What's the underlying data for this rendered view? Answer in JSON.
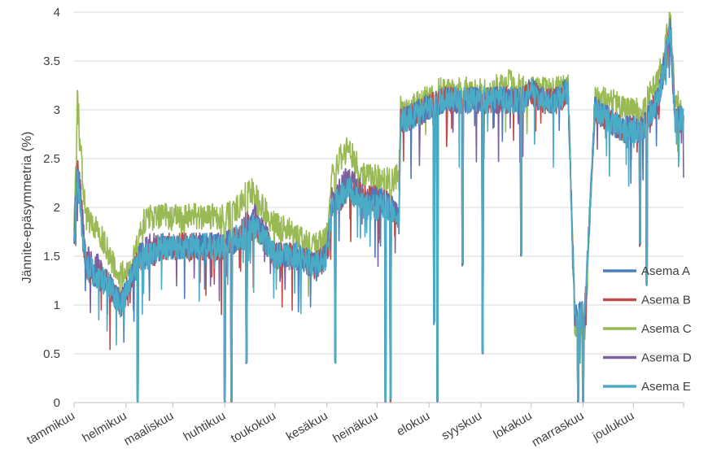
{
  "chart_data": {
    "type": "line",
    "title": "",
    "xlabel": "",
    "ylabel": "Jännite-epäsymmetria (%)",
    "ylim": [
      0,
      4
    ],
    "yticks": [
      "0",
      "0.5",
      "1",
      "1.5",
      "2",
      "2.5",
      "3",
      "3.5",
      "4"
    ],
    "grid": true,
    "legend_position": "bottom-right",
    "x_unit": "day of year",
    "xlim": [
      1,
      365
    ],
    "month_labels": [
      "tammikuu",
      "helmikuu",
      "maaliskuu",
      "huhtikuu",
      "toukokuu",
      "kesäkuu",
      "heinäkuu",
      "elokuu",
      "syyskuu",
      "lokakuu",
      "marraskuu",
      "joulukuu"
    ],
    "month_start_days": [
      1,
      32,
      60,
      91,
      121,
      152,
      182,
      213,
      244,
      274,
      305,
      335
    ],
    "dips": [
      {
        "x": 39,
        "y": 0
      },
      {
        "x": 91,
        "y": 0
      },
      {
        "x": 95,
        "y": 0
      },
      {
        "x": 104,
        "y": 0.4
      },
      {
        "x": 157,
        "y": 0.4
      },
      {
        "x": 187,
        "y": 0
      },
      {
        "x": 190,
        "y": 0
      },
      {
        "x": 216,
        "y": 0.8
      },
      {
        "x": 218,
        "y": 0
      },
      {
        "x": 233,
        "y": 1.4
      },
      {
        "x": 245,
        "y": 0.5
      },
      {
        "x": 268,
        "y": 1.5
      },
      {
        "x": 302,
        "y": 0
      },
      {
        "x": 305,
        "y": 0
      },
      {
        "x": 339,
        "y": 1.6
      },
      {
        "x": 343,
        "y": 1.2
      }
    ],
    "series": [
      {
        "name": "Asema A",
        "color": "#4a7ebb",
        "x": [
          1,
          3,
          8,
          15,
          22,
          29,
          36,
          40,
          46,
          53,
          60,
          70,
          80,
          90,
          100,
          105,
          110,
          121,
          125,
          135,
          145,
          152,
          155,
          165,
          175,
          182,
          190,
          195,
          196,
          200,
          210,
          220,
          230,
          240,
          250,
          260,
          270,
          274,
          280,
          290,
          296,
          300,
          306,
          312,
          320,
          330,
          340,
          350,
          357,
          360,
          365
        ],
        "values": [
          1.6,
          2.4,
          1.4,
          1.3,
          1.2,
          1.0,
          1.3,
          1.5,
          1.5,
          1.6,
          1.6,
          1.6,
          1.6,
          1.6,
          1.7,
          1.8,
          1.8,
          1.5,
          1.5,
          1.5,
          1.4,
          1.5,
          2.0,
          2.2,
          2.0,
          2.1,
          2.0,
          1.9,
          2.9,
          2.9,
          3.0,
          3.1,
          3.1,
          3.1,
          3.1,
          3.1,
          3.1,
          3.2,
          3.1,
          3.1,
          3.2,
          0.9,
          0.9,
          3.0,
          2.9,
          2.8,
          2.8,
          3.1,
          3.8,
          2.9,
          2.9
        ]
      },
      {
        "name": "Asema B",
        "color": "#be4b48",
        "x": [
          1,
          3,
          8,
          15,
          22,
          29,
          36,
          40,
          46,
          53,
          60,
          70,
          80,
          90,
          100,
          105,
          110,
          121,
          125,
          135,
          145,
          152,
          155,
          165,
          175,
          182,
          190,
          195,
          196,
          200,
          210,
          220,
          230,
          240,
          250,
          260,
          270,
          274,
          280,
          290,
          296,
          300,
          306,
          312,
          320,
          330,
          340,
          350,
          357,
          360,
          365
        ],
        "values": [
          1.6,
          2.4,
          1.4,
          1.3,
          1.2,
          1.0,
          1.3,
          1.5,
          1.5,
          1.6,
          1.6,
          1.6,
          1.6,
          1.6,
          1.7,
          1.8,
          1.8,
          1.5,
          1.5,
          1.5,
          1.4,
          1.5,
          2.0,
          2.2,
          2.1,
          2.1,
          2.0,
          1.9,
          2.9,
          2.9,
          3.0,
          3.1,
          3.1,
          3.1,
          3.1,
          3.1,
          3.1,
          3.2,
          3.1,
          3.1,
          3.2,
          0.9,
          0.9,
          3.0,
          2.9,
          2.8,
          2.8,
          3.1,
          3.8,
          2.9,
          2.9
        ]
      },
      {
        "name": "Asema C",
        "color": "#98b954",
        "x": [
          1,
          3,
          8,
          15,
          22,
          29,
          36,
          40,
          46,
          53,
          60,
          70,
          80,
          90,
          100,
          105,
          110,
          121,
          125,
          135,
          145,
          152,
          155,
          165,
          175,
          182,
          190,
          195,
          196,
          200,
          210,
          220,
          230,
          240,
          250,
          260,
          270,
          274,
          280,
          290,
          296,
          300,
          306,
          312,
          320,
          330,
          340,
          350,
          357,
          360,
          365
        ],
        "values": [
          1.7,
          3.1,
          1.9,
          1.8,
          1.5,
          1.3,
          1.4,
          1.8,
          1.9,
          1.9,
          1.9,
          1.9,
          1.9,
          1.9,
          2.0,
          2.2,
          2.1,
          1.8,
          1.8,
          1.7,
          1.6,
          1.7,
          2.4,
          2.6,
          2.3,
          2.3,
          2.3,
          2.3,
          3.0,
          3.0,
          3.1,
          3.2,
          3.2,
          3.2,
          3.2,
          3.3,
          3.2,
          3.2,
          3.2,
          3.2,
          3.3,
          0.8,
          0.7,
          3.1,
          3.1,
          3.0,
          3.0,
          3.3,
          4.0,
          3.1,
          3.0
        ]
      },
      {
        "name": "Asema D",
        "color": "#7d60a0",
        "x": [
          1,
          3,
          8,
          15,
          22,
          29,
          36,
          40,
          46,
          53,
          60,
          70,
          80,
          90,
          100,
          105,
          110,
          121,
          125,
          135,
          145,
          152,
          155,
          165,
          175,
          182,
          190,
          195,
          196,
          200,
          210,
          220,
          230,
          240,
          250,
          260,
          270,
          274,
          280,
          290,
          296,
          300,
          306,
          312,
          320,
          330,
          340,
          350,
          357,
          360,
          365
        ],
        "values": [
          1.6,
          2.5,
          1.5,
          1.4,
          1.2,
          1.0,
          1.3,
          1.5,
          1.6,
          1.6,
          1.6,
          1.6,
          1.6,
          1.6,
          1.7,
          1.9,
          1.9,
          1.5,
          1.5,
          1.5,
          1.4,
          1.5,
          2.1,
          2.3,
          2.1,
          2.1,
          2.0,
          1.9,
          2.9,
          2.9,
          3.0,
          3.1,
          3.1,
          3.1,
          3.1,
          3.1,
          3.1,
          3.2,
          3.1,
          3.1,
          3.2,
          0.9,
          0.9,
          3.0,
          2.9,
          2.8,
          2.8,
          3.1,
          3.8,
          2.9,
          2.9
        ]
      },
      {
        "name": "Asema E",
        "color": "#4bacc6",
        "x": [
          1,
          3,
          8,
          15,
          22,
          29,
          36,
          40,
          46,
          53,
          60,
          70,
          80,
          90,
          100,
          105,
          110,
          121,
          125,
          135,
          145,
          152,
          155,
          165,
          175,
          182,
          190,
          195,
          196,
          200,
          210,
          220,
          230,
          240,
          250,
          260,
          270,
          274,
          280,
          290,
          296,
          300,
          306,
          312,
          320,
          330,
          340,
          350,
          357,
          360,
          365
        ],
        "values": [
          1.6,
          2.3,
          1.4,
          1.3,
          1.2,
          1.0,
          1.3,
          1.5,
          1.5,
          1.6,
          1.6,
          1.6,
          1.6,
          1.6,
          1.7,
          1.8,
          1.8,
          1.5,
          1.5,
          1.5,
          1.4,
          1.5,
          2.0,
          2.2,
          2.0,
          2.0,
          2.0,
          1.9,
          2.9,
          2.9,
          3.0,
          3.1,
          3.1,
          3.1,
          3.1,
          3.1,
          3.1,
          3.2,
          3.1,
          3.1,
          3.2,
          0.9,
          0.9,
          3.0,
          2.9,
          2.8,
          2.8,
          3.1,
          3.8,
          2.9,
          2.9
        ]
      }
    ]
  }
}
